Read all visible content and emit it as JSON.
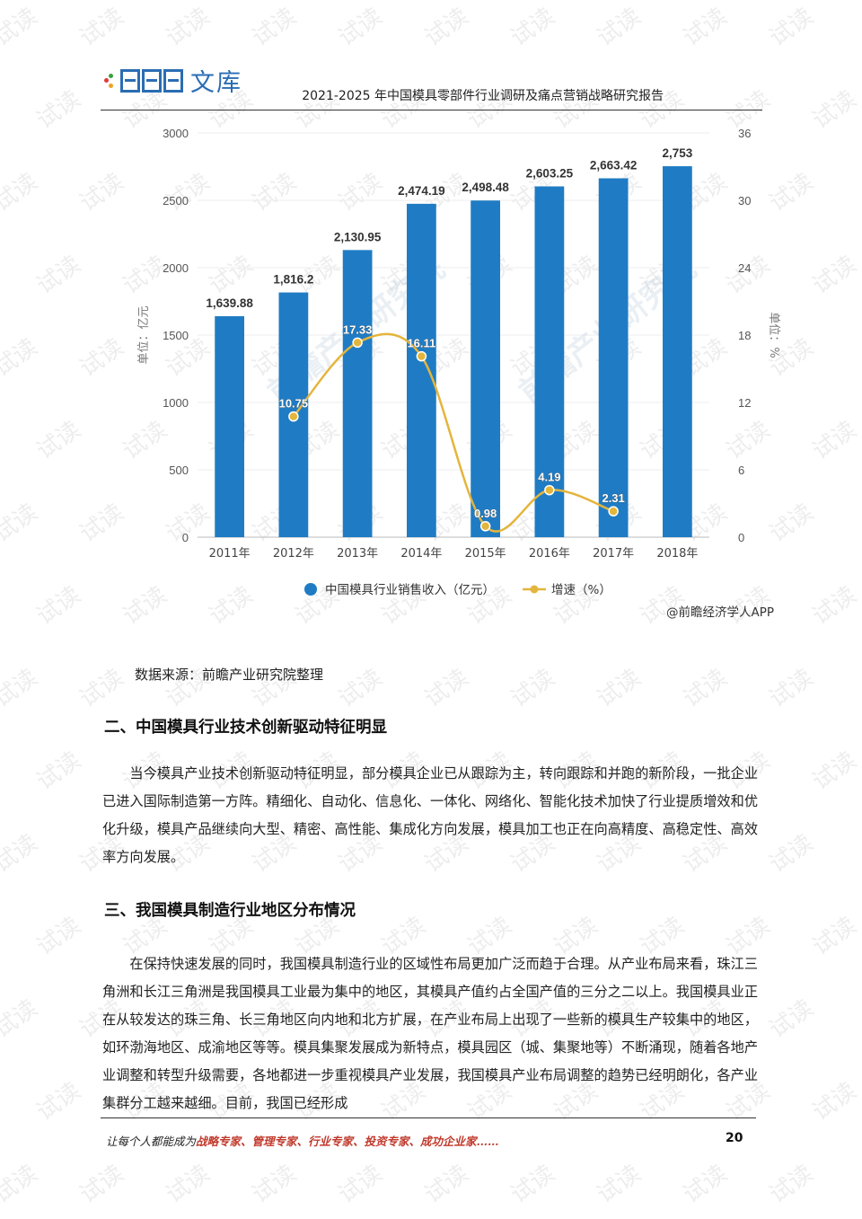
{
  "header": {
    "logo_text": "文库",
    "title": "2021-2025 年中国模具零部件行业调研及痛点营销战略研究报告"
  },
  "colors": {
    "bar": "#1f7cc4",
    "line": "#e4b53c",
    "brand": "#2a6db3",
    "footer_highlight": "#c0392b"
  },
  "chart_data": {
    "type": "bar",
    "categories": [
      "2011年",
      "2012年",
      "2013年",
      "2014年",
      "2015年",
      "2016年",
      "2017年",
      "2018年"
    ],
    "series": [
      {
        "name": "中国模具行业销售收入（亿元）",
        "type": "bar",
        "axis": "left",
        "values": [
          1639.88,
          1816.2,
          2130.95,
          2474.19,
          2498.48,
          2603.25,
          2663.42,
          2753
        ],
        "labels": [
          "1,639.88",
          "1,816.2",
          "2,130.95",
          "2,474.19",
          "2,498.48",
          "2,603.25",
          "2,663.42",
          "2,753"
        ]
      },
      {
        "name": "增速（%）",
        "type": "line",
        "axis": "right",
        "values": [
          null,
          10.75,
          17.33,
          16.11,
          0.98,
          4.19,
          2.31,
          null
        ],
        "labels": [
          "",
          "10.75",
          "17.33",
          "16.11",
          "0.98",
          "4.19",
          "2.31",
          ""
        ]
      }
    ],
    "ylabel": "单位：亿元",
    "y2label": "单位：%",
    "ylim": [
      0,
      3000
    ],
    "y2lim": [
      0,
      36
    ],
    "yticks": [
      "0",
      "500",
      "1000",
      "1500",
      "2000",
      "2500",
      "3000"
    ],
    "y2ticks": [
      "0",
      "6",
      "12",
      "18",
      "24",
      "30",
      "36"
    ],
    "legend_position": "bottom",
    "credit": "@前瞻经济学人APP",
    "watermark": "前瞻产业研究院"
  },
  "source": "数据来源：前瞻产业研究院整理",
  "section2": {
    "heading": "二、中国模具行业技术创新驱动特征明显",
    "lines": [
      "当今模具产业技术创新驱动特征明显，部分模具企业已从跟踪为主，转向跟踪和并跑的新阶",
      "段，一批企业已进入国际制造第一方阵。精细化、自动化、信息化、一体化、网络化、智能化技术",
      "加快了行业提质增效和优化升级，模具产品继续向大型、精密、高性能、集成化方向发展，模具加",
      "工也正在向高精度、高稳定性、高效率方向发展。"
    ]
  },
  "section3": {
    "heading": "三、我国模具制造行业地区分布情况",
    "lines": [
      "在保持快速发展的同时，我国模具制造行业的区域性布局更加广泛而趋于合理。从产业布局来",
      "看，珠江三角洲和长江三角洲是我国模具工业最为集中的地区，其模具产值约占全国产值的三分之",
      "二以上。我国模具业正在从较发达的珠三角、长三角地区向内地和北方扩展，在产业布局上出现了",
      "一些新的模具生产较集中的地区，如环渤海地区、成渝地区等等。模具集聚发展成为新特点，模具",
      "园区（城、集聚地等）不断涌现，随着各地产业调整和转型升级需要，各地都进一步重视模具产业",
      "发展，我国模具产业布局调整的趋势已经明朗化，各产业集群分工越来越细。目前，我国已经形成"
    ]
  },
  "footer": {
    "prefix": "让每个人都能成为",
    "highlight": "战略专家、管理专家、行业专家、投资专家、成功企业家……",
    "page": "20"
  },
  "watermark_text": "试读"
}
